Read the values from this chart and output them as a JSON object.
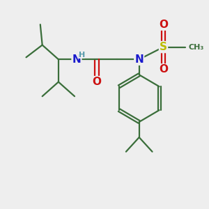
{
  "bg_color": "#eeeeee",
  "bond_color": "#3a6e3a",
  "N_color": "#1a1acc",
  "O_color": "#cc1111",
  "S_color": "#bbbb00",
  "H_color": "#5599aa",
  "line_width": 1.6,
  "fig_width": 3.0,
  "fig_height": 3.0,
  "dpi": 100,
  "xlim": [
    0,
    10
  ],
  "ylim": [
    0,
    10
  ]
}
